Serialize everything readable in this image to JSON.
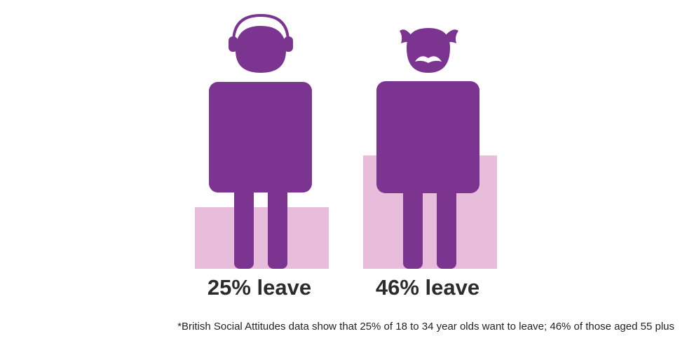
{
  "colors": {
    "figure": "#7b3590",
    "bar": "#e7bddb",
    "detail": "#ffffff",
    "text": "#2b2b2b"
  },
  "chart_data": {
    "type": "bar",
    "categories": [
      "18 to 34 year olds",
      "aged 55 plus"
    ],
    "values": [
      25,
      46
    ],
    "unit": "%",
    "ylim": [
      0,
      100
    ],
    "labels": [
      "25% leave",
      "46% leave"
    ],
    "icons": [
      "young-person-headphones-icon",
      "older-person-moustache-icon"
    ]
  },
  "footnote": "*British Social Attitudes data show that 25% of 18 to 34 year olds want to leave;  46% of those aged 55 plus"
}
